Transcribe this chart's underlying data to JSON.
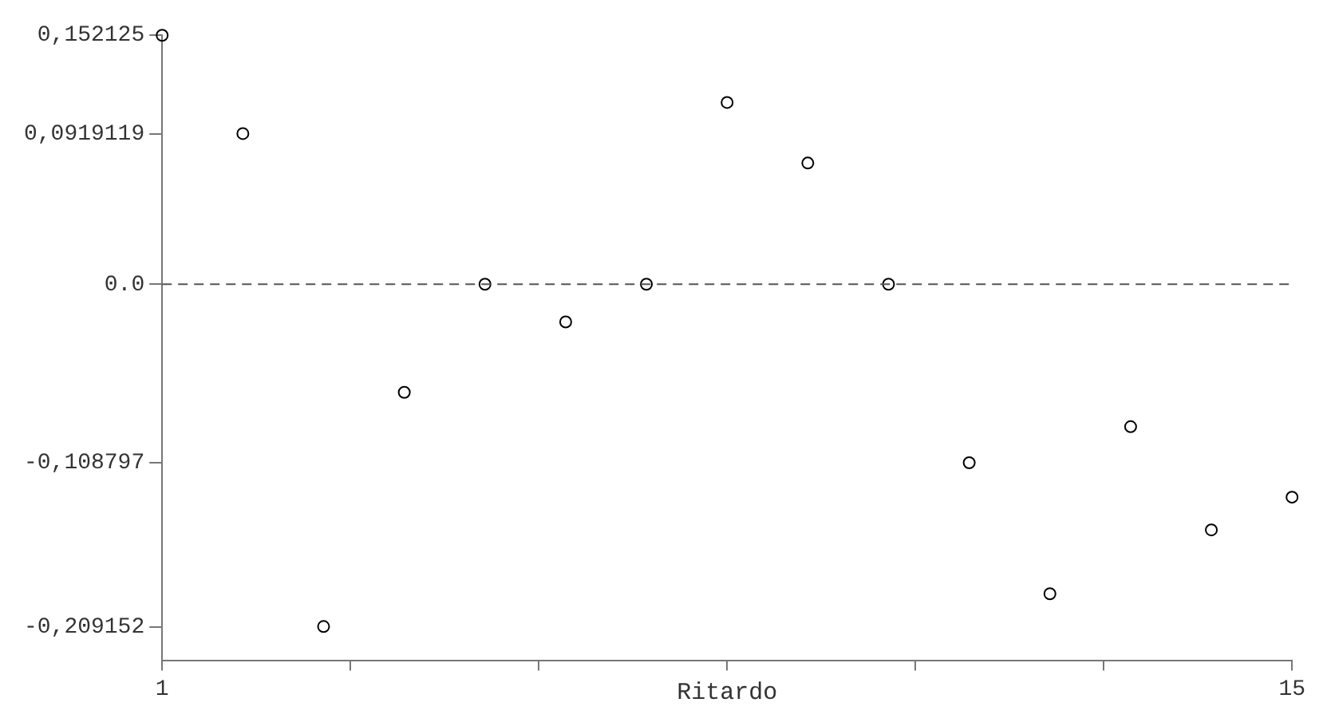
{
  "chart_data": {
    "type": "scatter",
    "xlabel": "Ritardo",
    "x": [
      1,
      2,
      3,
      4,
      5,
      6,
      7,
      8,
      9,
      10,
      11,
      12,
      13,
      14,
      15
    ],
    "series": [
      {
        "color": "#000000",
        "values": [
          0.152,
          0.092,
          -0.209,
          -0.066,
          0,
          -0.023,
          0,
          0.111,
          0.074,
          0,
          -0.109,
          -0.189,
          -0.087,
          -0.15,
          -0.13
        ]
      }
    ],
    "marker": "circle",
    "xlim": [
      1,
      15
    ],
    "xticks": [
      1,
      {
        "value": 3.333,
        "label": null
      },
      {
        "value": 5.667,
        "label": null
      },
      {
        "value": 8,
        "label": null
      },
      {
        "value": 10.333,
        "label": null
      },
      {
        "value": 12.667,
        "label": null
      },
      15
    ],
    "ylim": [
      -0.23,
      0.152125
    ],
    "yticks": [
      {
        "value": 0.152125,
        "label": "0,152125"
      },
      {
        "value": 0.0919119,
        "label": "0,0919119"
      },
      {
        "value": 0,
        "label": "0.0"
      },
      {
        "value": -0.108797,
        "label": "-0,108797"
      },
      {
        "value": -0.209152,
        "label": "-0,209152"
      }
    ],
    "ref_lines": [
      {
        "axis": "y",
        "value": 0,
        "line_style": "dashed",
        "color": "#555555"
      }
    ],
    "grid": false,
    "legend": false
  }
}
